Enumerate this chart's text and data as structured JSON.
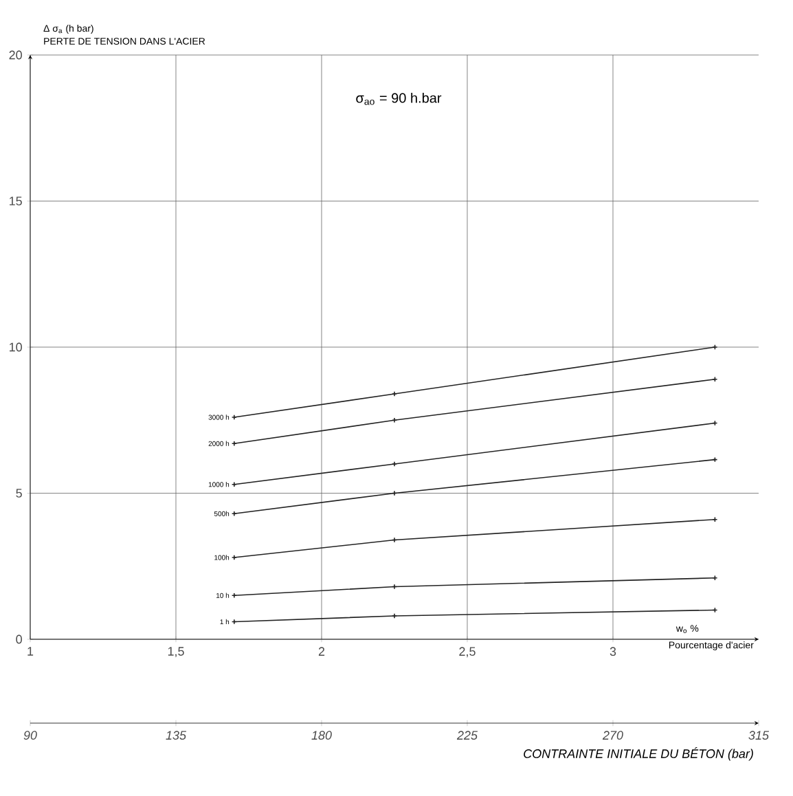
{
  "chart_data": {
    "type": "line",
    "title": "PERTE DE TENSION DANS L'ACIER",
    "ylabel": "Δ σ$_{a}$ (h bar)",
    "xlabel": "Pourcentage d'acier",
    "x2label": "CONTRAINTE INITIALE DU BÉTON (bar)",
    "annotations": [
      "σ$_{ao}$ = 90 h.bar",
      "w$_{o}$ %"
    ],
    "x": [
      1.7,
      2.25,
      3.35
    ],
    "series": [
      {
        "name": "3000 h",
        "color": "#222222",
        "values": [
          7.6,
          8.4,
          10.0
        ]
      },
      {
        "name": "2000 h",
        "color": "#222222",
        "values": [
          6.7,
          7.5,
          8.9
        ]
      },
      {
        "name": "1000 h",
        "color": "#222222",
        "values": [
          5.3,
          6.0,
          7.4
        ]
      },
      {
        "name": "500h",
        "color": "#222222",
        "values": [
          4.3,
          5.0,
          6.15
        ]
      },
      {
        "name": "100h",
        "color": "#222222",
        "values": [
          2.8,
          3.4,
          4.1
        ]
      },
      {
        "name": "10 h",
        "color": "#222222",
        "values": [
          1.5,
          1.8,
          2.1
        ]
      },
      {
        "name": "1 h",
        "color": "#222222",
        "values": [
          0.6,
          0.8,
          1.0
        ]
      }
    ],
    "xlim": [
      1,
      3.5
    ],
    "xticks": [
      1,
      {
        "value": 1.5,
        "label": "1,5"
      },
      2,
      {
        "value": 2.5,
        "label": "2,5"
      },
      3
    ],
    "x2lim": [
      90,
      315
    ],
    "x2ticks": [
      90,
      135,
      180,
      225,
      270,
      315
    ],
    "ylim": [
      0,
      20
    ],
    "yticks": [
      0,
      5,
      10,
      15,
      20
    ],
    "grid": true,
    "marker": "cross",
    "line_style": "solid"
  }
}
